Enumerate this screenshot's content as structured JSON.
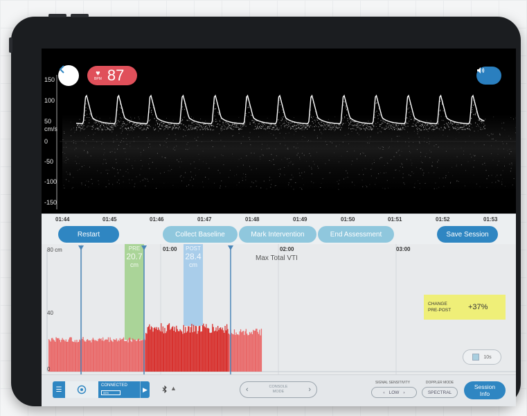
{
  "header": {
    "heart_rate_value": "87",
    "heart_rate_unit": "BPM"
  },
  "ultrasound": {
    "y_labels": [
      "150",
      "100",
      "50",
      "cm/s",
      "0",
      "-50",
      "-100",
      "-150"
    ]
  },
  "timeline": {
    "ticks": [
      "01:44",
      "01:45",
      "01:46",
      "01:47",
      "01:48",
      "01:49",
      "01:50",
      "01:51",
      "01:52",
      "01:53"
    ]
  },
  "actions": {
    "restart": "Restart",
    "collect_baseline": "Collect Baseline",
    "mark_intervention": "Mark Intervention",
    "end_assessment": "End Assessment",
    "save_session": "Save Session"
  },
  "trend": {
    "y_top": "80 cm",
    "y_mid": "40",
    "y_bottom": "0",
    "time_labels": [
      "01:00",
      "02:00",
      "03:00"
    ],
    "title": "Max Total VTI",
    "pre_label": "PRE",
    "pre_value": "20.7",
    "pre_unit": "cm",
    "post_label": "POST",
    "post_value": "28.4",
    "post_unit": "cm",
    "change_label_line1": "CHANGE",
    "change_label_line2": "PRE-POST",
    "change_value": "+37%",
    "window_label": "10s",
    "colors": {
      "bar_baseline": "#e96a6a",
      "bar_post": "#d8322f",
      "pre_band": "#9fd08a",
      "post_band": "#9ec8ea",
      "marker": "#4a86b8"
    }
  },
  "bottom": {
    "connected_label": "CONNECTED",
    "battery_label": "55%",
    "console_line1": "CONSOLE",
    "console_line2": "MODE",
    "signal_caption": "SIGNAL SENSITIVITY",
    "signal_value": "LOW",
    "doppler_caption": "DOPPLER MODE",
    "doppler_value": "SPECTRAL",
    "session_info_line1": "Session",
    "session_info_line2": "Info"
  },
  "icons": [
    "back-icon",
    "heart-icon",
    "volume-icon",
    "menu-icon",
    "probe-icon",
    "battery-icon",
    "chevron-right-icon",
    "bluetooth-icon",
    "warning-icon",
    "chevron-left-icon",
    "window-icon"
  ]
}
